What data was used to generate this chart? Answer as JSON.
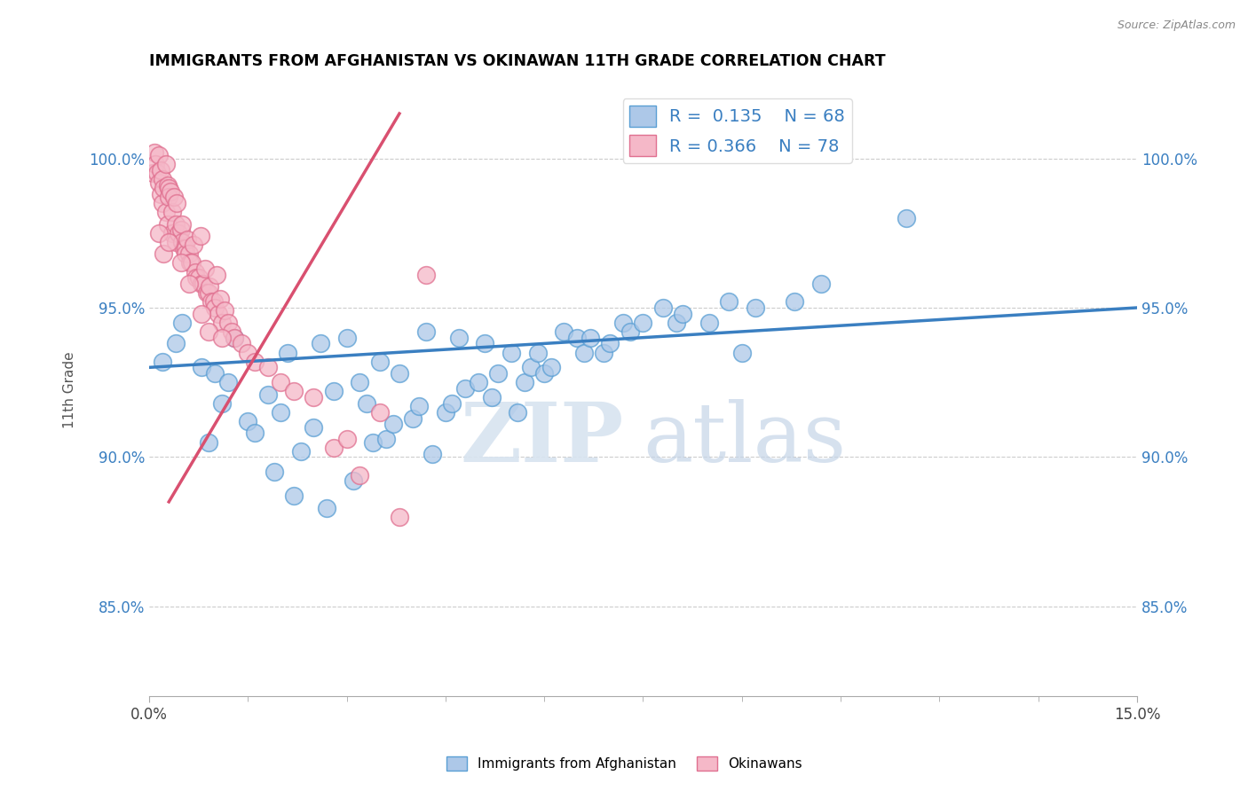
{
  "title": "IMMIGRANTS FROM AFGHANISTAN VS OKINAWAN 11TH GRADE CORRELATION CHART",
  "source_text": "Source: ZipAtlas.com",
  "ylabel": "11th Grade",
  "xlim": [
    0.0,
    15.0
  ],
  "ylim": [
    82.0,
    102.5
  ],
  "ytick_labels": [
    "85.0%",
    "90.0%",
    "95.0%",
    "100.0%"
  ],
  "ytick_values": [
    85.0,
    90.0,
    95.0,
    100.0
  ],
  "blue_R": 0.135,
  "blue_N": 68,
  "pink_R": 0.366,
  "pink_N": 78,
  "blue_color": "#adc8e8",
  "pink_color": "#f5b8c8",
  "blue_edge_color": "#5a9fd4",
  "pink_edge_color": "#e07090",
  "blue_line_color": "#3a7fc1",
  "pink_line_color": "#d95070",
  "legend_label_blue": "Immigrants from Afghanistan",
  "legend_label_pink": "Okinawans",
  "watermark_zip": "ZIP",
  "watermark_atlas": "atlas",
  "blue_line_x0": 0.0,
  "blue_line_y0": 93.0,
  "blue_line_x1": 15.0,
  "blue_line_y1": 95.0,
  "pink_line_x0": 0.3,
  "pink_line_y0": 88.5,
  "pink_line_x1": 3.8,
  "pink_line_y1": 101.5,
  "blue_scatter_x": [
    0.2,
    0.4,
    0.5,
    0.8,
    0.9,
    1.0,
    1.1,
    1.2,
    1.3,
    1.5,
    1.6,
    1.8,
    1.9,
    2.0,
    2.1,
    2.2,
    2.3,
    2.5,
    2.6,
    2.7,
    2.8,
    3.0,
    3.1,
    3.2,
    3.3,
    3.4,
    3.5,
    3.6,
    3.7,
    3.8,
    4.0,
    4.1,
    4.2,
    4.3,
    4.5,
    4.6,
    4.7,
    4.8,
    5.0,
    5.1,
    5.2,
    5.3,
    5.5,
    5.6,
    5.7,
    5.8,
    5.9,
    6.0,
    6.1,
    6.3,
    6.5,
    6.6,
    6.7,
    6.9,
    7.0,
    7.2,
    7.3,
    7.5,
    7.8,
    8.0,
    8.1,
    8.5,
    8.8,
    9.0,
    9.2,
    9.8,
    10.2,
    11.5
  ],
  "blue_scatter_y": [
    93.2,
    93.8,
    94.5,
    93.0,
    90.5,
    92.8,
    91.8,
    92.5,
    94.0,
    91.2,
    90.8,
    92.1,
    89.5,
    91.5,
    93.5,
    88.7,
    90.2,
    91.0,
    93.8,
    88.3,
    92.2,
    94.0,
    89.2,
    92.5,
    91.8,
    90.5,
    93.2,
    90.6,
    91.1,
    92.8,
    91.3,
    91.7,
    94.2,
    90.1,
    91.5,
    91.8,
    94.0,
    92.3,
    92.5,
    93.8,
    92.0,
    92.8,
    93.5,
    91.5,
    92.5,
    93.0,
    93.5,
    92.8,
    93.0,
    94.2,
    94.0,
    93.5,
    94.0,
    93.5,
    93.8,
    94.5,
    94.2,
    94.5,
    95.0,
    94.5,
    94.8,
    94.5,
    95.2,
    93.5,
    95.0,
    95.2,
    95.8,
    98.0
  ],
  "pink_scatter_x": [
    0.05,
    0.08,
    0.1,
    0.12,
    0.15,
    0.15,
    0.18,
    0.18,
    0.2,
    0.2,
    0.22,
    0.25,
    0.25,
    0.28,
    0.28,
    0.3,
    0.3,
    0.32,
    0.35,
    0.35,
    0.38,
    0.4,
    0.4,
    0.42,
    0.45,
    0.48,
    0.5,
    0.5,
    0.52,
    0.55,
    0.55,
    0.58,
    0.6,
    0.62,
    0.65,
    0.68,
    0.7,
    0.72,
    0.75,
    0.78,
    0.8,
    0.82,
    0.85,
    0.88,
    0.9,
    0.92,
    0.95,
    0.98,
    1.0,
    1.02,
    1.05,
    1.08,
    1.1,
    1.15,
    1.2,
    1.25,
    1.3,
    1.4,
    1.5,
    1.6,
    1.8,
    2.0,
    2.2,
    2.5,
    2.8,
    3.0,
    3.2,
    3.5,
    3.8,
    4.2,
    0.15,
    0.22,
    0.3,
    0.48,
    0.6,
    0.8,
    0.9,
    1.1
  ],
  "pink_scatter_y": [
    99.5,
    100.2,
    99.8,
    99.5,
    100.1,
    99.2,
    98.8,
    99.6,
    99.3,
    98.5,
    99.0,
    99.8,
    98.2,
    99.1,
    97.8,
    99.0,
    98.7,
    98.9,
    97.5,
    98.2,
    98.7,
    97.8,
    97.2,
    98.5,
    97.5,
    97.6,
    97.2,
    97.8,
    97.0,
    97.0,
    96.8,
    97.3,
    96.8,
    96.5,
    96.5,
    97.1,
    96.2,
    96.0,
    96.0,
    97.4,
    95.8,
    95.8,
    96.3,
    95.5,
    95.5,
    95.7,
    95.2,
    95.2,
    95.0,
    96.1,
    94.8,
    95.3,
    94.5,
    94.9,
    94.5,
    94.2,
    94.0,
    93.8,
    93.5,
    93.2,
    93.0,
    92.5,
    92.2,
    92.0,
    90.3,
    90.6,
    89.4,
    91.5,
    88.0,
    96.1,
    97.5,
    96.8,
    97.2,
    96.5,
    95.8,
    94.8,
    94.2,
    94.0
  ]
}
